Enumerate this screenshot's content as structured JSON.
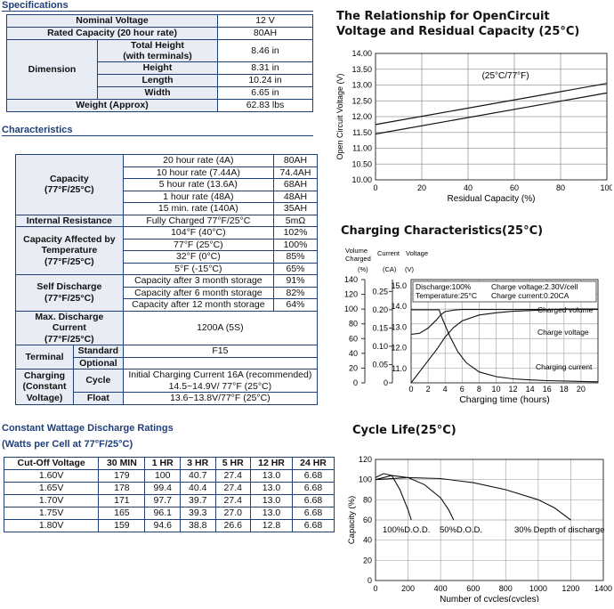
{
  "specifications": {
    "title": "Specifications",
    "rows": {
      "nominal_voltage": {
        "label": "Nominal Voltage",
        "value": "12 V"
      },
      "rated_capacity": {
        "label": "Rated Capacity (20 hour rate)",
        "value": "80AH"
      },
      "dimension_label": "Dimension",
      "total_height": {
        "label": "Total Height\n(with terminals)",
        "value": "8.46 in"
      },
      "height": {
        "label": "Height",
        "value": "8.31 in"
      },
      "length": {
        "label": "Length",
        "value": "10.24 in"
      },
      "width": {
        "label": "Width",
        "value": "6.65 in"
      },
      "weight": {
        "label": "Weight (Approx)",
        "value": "62.83 lbs"
      }
    }
  },
  "characteristics": {
    "title": "Characteristics",
    "capacity": {
      "label": "Capacity\n(77°F/25°C)",
      "rows": [
        {
          "rate": "20 hour rate (4A)",
          "value": "80AH"
        },
        {
          "rate": "10 hour rate (7.44A)",
          "value": "74.4AH"
        },
        {
          "rate": "5 hour rate (13.6A)",
          "value": "68AH"
        },
        {
          "rate": "1 hour rate (48A)",
          "value": "48AH"
        },
        {
          "rate": "15 min. rate (140A)",
          "value": "35AH"
        }
      ]
    },
    "internal_resistance": {
      "label": "Internal Resistance",
      "condition": "Fully Charged 77°F/25°C",
      "value": "5mΩ"
    },
    "temperature": {
      "label": "Capacity Affected by\nTemperature\n(77°F/25°C)",
      "rows": [
        {
          "temp": "104°F (40°C)",
          "value": "102%"
        },
        {
          "temp": "77°F (25°C)",
          "value": "100%"
        },
        {
          "temp": "32°F (0°C)",
          "value": "85%"
        },
        {
          "temp": "5°F (-15°C)",
          "value": "65%"
        }
      ]
    },
    "self_discharge": {
      "label": "Self Discharge\n(77°F/25°C)",
      "rows": [
        {
          "period": "Capacity after 3 month storage",
          "value": "91%"
        },
        {
          "period": "Capacity after 6 month storage",
          "value": "82%"
        },
        {
          "period": "Capacity after 12 month storage",
          "value": "64%"
        }
      ]
    },
    "max_discharge": {
      "label": "Max. Discharge\nCurrent\n(77°F/25°C)",
      "value": "1200A (5S)"
    },
    "terminal": {
      "label": "Terminal",
      "standard_label": "Standard",
      "standard_value": "F15",
      "optional_label": "Optional",
      "optional_value": ""
    },
    "charging": {
      "label": "Charging\n(Constant\nVoltage)",
      "cycle_label": "Cycle",
      "cycle_value": "Initial Charging Current 16A (recommended)\n14.5~14.9V/ 77°F (25°C)",
      "float_label": "Float",
      "float_value": "13.6~13.8V/77°F (25°C)"
    }
  },
  "wattage": {
    "title": "Constant Wattage Discharge Ratings",
    "subtitle": "(Watts per Cell at 77°F/25°C)",
    "headers": [
      "Cut-Off Voltage",
      "30 MIN",
      "1 HR",
      "3 HR",
      "5 HR",
      "12 HR",
      "24 HR"
    ],
    "rows": [
      [
        "1.60V",
        "179",
        "100",
        "40.7",
        "27.4",
        "13.0",
        "6.68"
      ],
      [
        "1.65V",
        "178",
        "99.4",
        "40.4",
        "27.4",
        "13.0",
        "6.68"
      ],
      [
        "1.70V",
        "171",
        "97.7",
        "39.7",
        "27.4",
        "13.0",
        "6.68"
      ],
      [
        "1.75V",
        "165",
        "96.1",
        "39.3",
        "27.0",
        "13.0",
        "6.68"
      ],
      [
        "1.80V",
        "159",
        "94.6",
        "38.8",
        "26.6",
        "12.8",
        "6.68"
      ]
    ]
  },
  "chart_data": [
    {
      "type": "line",
      "title": "The Relationship for OpenCircuit Voltage and Residual Capacity (25°C)",
      "annotation": "(25°C/77°F)",
      "xlabel": "Residual Capacity (%)",
      "ylabel": "Open Circuit Voltage (V)",
      "xlim": [
        0,
        100
      ],
      "ylim": [
        10.0,
        14.0
      ],
      "xticks": [
        "0",
        "20",
        "40",
        "60",
        "80",
        "100"
      ],
      "yticks": [
        "10.00",
        "10.50",
        "11.00",
        "11.50",
        "12.00",
        "12.50",
        "13.00",
        "13.50",
        "14.00"
      ],
      "series": [
        {
          "x": [
            0,
            100
          ],
          "y": [
            11.75,
            13.05
          ]
        },
        {
          "x": [
            0,
            100
          ],
          "y": [
            11.45,
            12.75
          ]
        }
      ]
    },
    {
      "type": "line",
      "title": "Charging Characteristics(25°C)",
      "xlabel": "Charging time (hours)",
      "axis_headers": {
        "volume": "Volume\nCharged",
        "current": "Current",
        "voltage": "Voltage",
        "volume_unit": "(%)",
        "current_unit": "(CA)",
        "voltage_unit": "(V)"
      },
      "xlim": [
        0,
        22
      ],
      "xticks": [
        "0",
        "2",
        "4",
        "6",
        "8",
        "10",
        "12",
        "14",
        "16",
        "18",
        "20"
      ],
      "yticks_volume": [
        "0",
        "20",
        "40",
        "60",
        "80",
        "100",
        "120",
        "140"
      ],
      "yticks_current": [
        "0",
        "0.05",
        "0.10",
        "0.15",
        "0.20",
        "0.25"
      ],
      "yticks_voltage": [
        "11.0",
        "12.0",
        "13.0",
        "14.0",
        "15.0"
      ],
      "legend_text": {
        "discharge": "Discharge:100%",
        "temperature": "Temperature:25°C",
        "charge_voltage": "Charge voltage:2.30V/cell",
        "charge_current": "Charge current:0.20CA"
      },
      "series": [
        {
          "name": "Charged volume",
          "axis": "volume",
          "x": [
            0,
            1,
            2,
            3,
            4,
            5,
            6,
            8,
            10,
            12,
            14,
            16,
            18,
            20,
            22
          ],
          "y": [
            0,
            15,
            30,
            45,
            62,
            75,
            84,
            92,
            95,
            97,
            98,
            99,
            100,
            100,
            100
          ]
        },
        {
          "name": "Charge voltage",
          "axis": "voltage",
          "x": [
            0,
            1,
            2,
            3,
            3.5,
            4,
            5,
            6,
            8,
            10,
            14,
            18,
            22
          ],
          "y": [
            12.65,
            12.7,
            12.95,
            13.35,
            13.6,
            13.75,
            13.82,
            13.85,
            13.85,
            13.85,
            13.85,
            13.85,
            13.85
          ]
        },
        {
          "name": "Charging current",
          "axis": "current",
          "x": [
            0,
            3.3,
            3.6,
            4.5,
            5.5,
            6.5,
            8,
            10,
            12,
            14,
            16,
            18,
            20,
            22
          ],
          "y": [
            0.2,
            0.2,
            0.18,
            0.13,
            0.085,
            0.055,
            0.03,
            0.017,
            0.011,
            0.008,
            0.006,
            0.005,
            0.004,
            0.003
          ]
        }
      ]
    },
    {
      "type": "line",
      "title": "Cycle Life(25°C)",
      "xlabel": "Number of cycles(cycles)",
      "ylabel": "Capacity (%)",
      "xlim": [
        0,
        1400
      ],
      "ylim": [
        0,
        120
      ],
      "xticks": [
        "0",
        "200",
        "400",
        "600",
        "800",
        "1000",
        "1200",
        "1400"
      ],
      "yticks": [
        "0",
        "20",
        "40",
        "60",
        "80",
        "100",
        "120"
      ],
      "series": [
        {
          "name": "100%D.O.D.",
          "x": [
            0,
            50,
            100,
            150,
            200,
            220
          ],
          "y": [
            102,
            106,
            104,
            90,
            70,
            60
          ]
        },
        {
          "name": "50%D.O.D.",
          "x": [
            0,
            100,
            200,
            300,
            400,
            450,
            480
          ],
          "y": [
            100,
            104,
            102,
            95,
            82,
            70,
            60
          ]
        },
        {
          "name": "30% Depth of discharge",
          "x": [
            0,
            200,
            400,
            600,
            800,
            1000,
            1100,
            1200
          ],
          "y": [
            100,
            102,
            101,
            97,
            90,
            80,
            72,
            60
          ]
        }
      ]
    }
  ]
}
